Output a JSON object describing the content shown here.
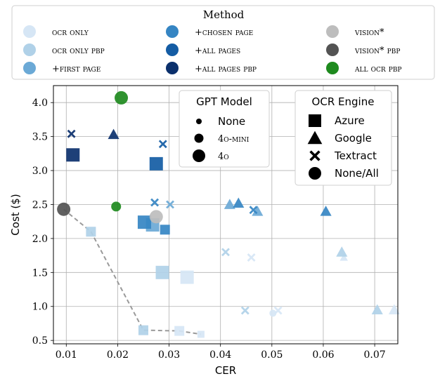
{
  "chart_data": {
    "type": "scatter",
    "xlabel": "CER",
    "ylabel": "Cost ($)",
    "xlim": [
      0.0075,
      0.0745
    ],
    "ylim": [
      0.45,
      4.25
    ],
    "xticks": [
      0.01,
      0.02,
      0.03,
      0.04,
      0.05,
      0.06,
      0.07
    ],
    "xtick_labels": [
      "0.01",
      "0.02",
      "0.03",
      "0.04",
      "0.05",
      "0.06",
      "0.07"
    ],
    "yticks": [
      0.5,
      1.0,
      1.5,
      2.0,
      2.5,
      3.0,
      3.5,
      4.0
    ],
    "ytick_labels": [
      "0.5",
      "1.0",
      "1.5",
      "2.0",
      "2.5",
      "3.0",
      "3.5",
      "4.0"
    ],
    "grid": true,
    "method_legend": {
      "title": "Method",
      "placement": "top",
      "entries": [
        {
          "label": "ocr only",
          "color": "#d6e6f5"
        },
        {
          "label": "ocr only pbp",
          "color": "#b0d1e8"
        },
        {
          "label": "+first page",
          "color": "#6ba9d6"
        },
        {
          "label": "+chosen page",
          "color": "#3585c3"
        },
        {
          "label": "+all pages",
          "color": "#145ca4"
        },
        {
          "label": "+all pages pbp",
          "color": "#0b306c"
        },
        {
          "label": "vision*",
          "color": "#bdbdbd"
        },
        {
          "label": "vision* pbp",
          "color": "#535353"
        },
        {
          "label": "all ocr pbp",
          "color": "#1e8a1e"
        }
      ]
    },
    "model_legend": {
      "title": "GPT Model",
      "placement": "upper-center",
      "entries": [
        {
          "label": "None",
          "size": "small"
        },
        {
          "label": "4o-mini",
          "size": "medium"
        },
        {
          "label": "4o",
          "size": "large"
        }
      ]
    },
    "engine_legend": {
      "title": "OCR Engine",
      "placement": "upper-right",
      "entries": [
        {
          "label": "Azure",
          "marker": "square"
        },
        {
          "label": "Google",
          "marker": "triangle"
        },
        {
          "label": "Textract",
          "marker": "x"
        },
        {
          "label": "None/All",
          "marker": "circle"
        }
      ]
    },
    "pareto_front": [
      [
        0.0095,
        2.43
      ],
      [
        0.0148,
        2.1
      ],
      [
        0.025,
        0.65
      ],
      [
        0.032,
        0.64
      ],
      [
        0.0362,
        0.59
      ]
    ],
    "points": [
      {
        "method": "ocr only",
        "engine": "square",
        "model": "None",
        "x": 0.0362,
        "y": 0.59
      },
      {
        "method": "ocr only",
        "engine": "square",
        "model": "4o-mini",
        "x": 0.032,
        "y": 0.64
      },
      {
        "method": "ocr only",
        "engine": "square",
        "model": "4o",
        "x": 0.0335,
        "y": 1.43
      },
      {
        "method": "ocr only",
        "engine": "triangle",
        "model": "None",
        "x": 0.064,
        "y": 1.72
      },
      {
        "method": "ocr only",
        "engine": "triangle",
        "model": "4o-mini",
        "x": 0.0738,
        "y": 0.95
      },
      {
        "method": "ocr only",
        "engine": "x",
        "model": "4o-mini",
        "x": 0.0512,
        "y": 0.94
      },
      {
        "method": "ocr only",
        "engine": "x",
        "model": "4o-mini",
        "x": 0.046,
        "y": 1.72
      },
      {
        "method": "ocr only",
        "engine": "circle",
        "model": "None",
        "x": 0.0502,
        "y": 0.9
      },
      {
        "method": "ocr only pbp",
        "engine": "square",
        "model": "4o-mini",
        "x": 0.025,
        "y": 0.65
      },
      {
        "method": "ocr only pbp",
        "engine": "square",
        "model": "4o",
        "x": 0.0287,
        "y": 1.5
      },
      {
        "method": "ocr only pbp",
        "engine": "triangle",
        "model": "4o-mini",
        "x": 0.0636,
        "y": 1.8
      },
      {
        "method": "ocr only pbp",
        "engine": "triangle",
        "model": "4o-mini",
        "x": 0.0705,
        "y": 0.95
      },
      {
        "method": "ocr only pbp",
        "engine": "x",
        "model": "4o-mini",
        "x": 0.041,
        "y": 1.8
      },
      {
        "method": "ocr only pbp",
        "engine": "x",
        "model": "4o-mini",
        "x": 0.0448,
        "y": 0.94
      },
      {
        "method": "ocr only pbp",
        "engine": "square",
        "model": "4o-mini",
        "x": 0.0148,
        "y": 2.1
      },
      {
        "method": "+first page",
        "engine": "square",
        "model": "4o",
        "x": 0.0268,
        "y": 2.2
      },
      {
        "method": "+first page",
        "engine": "triangle",
        "model": "4o-mini",
        "x": 0.0418,
        "y": 2.5
      },
      {
        "method": "+first page",
        "engine": "triangle",
        "model": "4o-mini",
        "x": 0.0472,
        "y": 2.4
      },
      {
        "method": "+first page",
        "engine": "x",
        "model": "4o-mini",
        "x": 0.0302,
        "y": 2.5
      },
      {
        "method": "+chosen page",
        "engine": "square",
        "model": "4o",
        "x": 0.0252,
        "y": 2.24
      },
      {
        "method": "+chosen page",
        "engine": "square",
        "model": "4o-mini",
        "x": 0.0292,
        "y": 2.13
      },
      {
        "method": "+chosen page",
        "engine": "triangle",
        "model": "4o-mini",
        "x": 0.0435,
        "y": 2.52
      },
      {
        "method": "+chosen page",
        "engine": "x",
        "model": "4o-mini",
        "x": 0.0272,
        "y": 2.53
      },
      {
        "method": "+chosen page",
        "engine": "x",
        "model": "4o-mini",
        "x": 0.0464,
        "y": 2.42
      },
      {
        "method": "+chosen page",
        "engine": "triangle",
        "model": "4o-mini",
        "x": 0.0605,
        "y": 2.4
      },
      {
        "method": "+all pages",
        "engine": "square",
        "model": "4o",
        "x": 0.0275,
        "y": 3.1
      },
      {
        "method": "+all pages",
        "engine": "x",
        "model": "4o-mini",
        "x": 0.0288,
        "y": 3.39
      },
      {
        "method": "+all pages pbp",
        "engine": "square",
        "model": "4o",
        "x": 0.0113,
        "y": 3.23
      },
      {
        "method": "+all pages pbp",
        "engine": "triangle",
        "model": "4o-mini",
        "x": 0.0192,
        "y": 3.53
      },
      {
        "method": "+all pages pbp",
        "engine": "x",
        "model": "4o-mini",
        "x": 0.011,
        "y": 3.54
      },
      {
        "method": "vision*",
        "engine": "circle",
        "model": "4o",
        "x": 0.0275,
        "y": 2.32
      },
      {
        "method": "vision* pbp",
        "engine": "circle",
        "model": "4o",
        "x": 0.0095,
        "y": 2.43
      },
      {
        "method": "all ocr pbp",
        "engine": "circle",
        "model": "4o",
        "x": 0.0207,
        "y": 4.07
      },
      {
        "method": "all ocr pbp",
        "engine": "circle",
        "model": "4o-mini",
        "x": 0.0197,
        "y": 2.47
      }
    ]
  }
}
